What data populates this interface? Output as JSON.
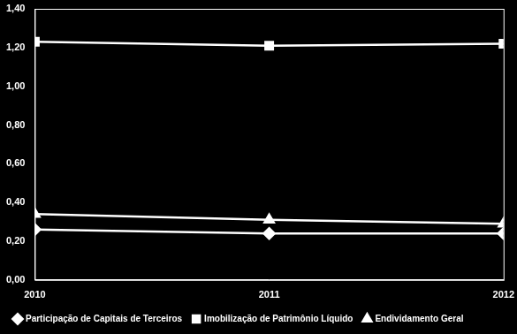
{
  "chart_data": {
    "type": "line",
    "categories": [
      "2010",
      "2011",
      "2012"
    ],
    "series": [
      {
        "name": "Participação de Capitais de Terceiros",
        "color": "#ffffff",
        "marker": "diamond",
        "values": [
          0.26,
          0.24,
          0.24
        ]
      },
      {
        "name": "Imobilização de Patrimônio Líquido",
        "color": "#ffffff",
        "marker": "square",
        "values": [
          1.23,
          1.21,
          1.22
        ]
      },
      {
        "name": "Endividamento Geral",
        "color": "#ffffff",
        "marker": "triangle",
        "values": [
          0.34,
          0.31,
          0.29
        ]
      }
    ],
    "ylim": [
      0,
      1.4
    ],
    "yticks": [
      {
        "value": 0,
        "label": "0,00"
      },
      {
        "value": 0.2,
        "label": "0,20"
      },
      {
        "value": 0.4,
        "label": "0,40"
      },
      {
        "value": 0.6,
        "label": "0,60"
      },
      {
        "value": 0.8,
        "label": "0,80"
      },
      {
        "value": 1.0,
        "label": "1,00"
      },
      {
        "value": 1.2,
        "label": "1,20"
      },
      {
        "value": 1.4,
        "label": "1,40"
      }
    ],
    "grid": false,
    "legend": "bottom"
  }
}
